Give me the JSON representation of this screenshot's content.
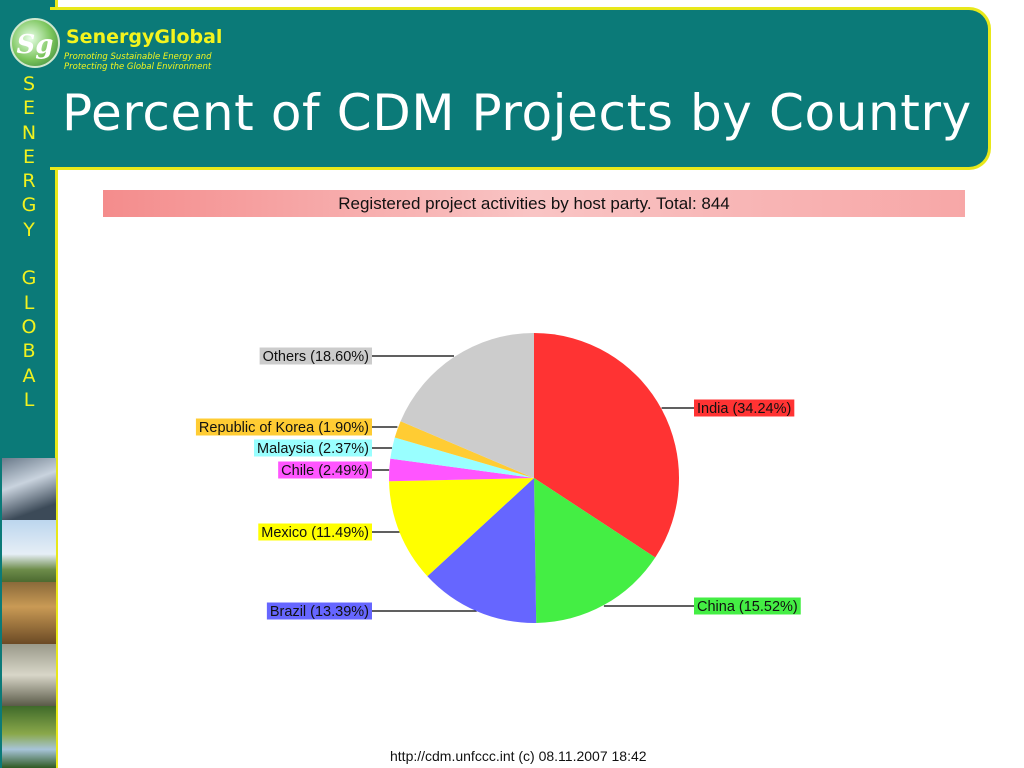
{
  "brand": {
    "name": "SenergyGlobal",
    "logo_text": "Sg",
    "tagline": "Promoting Sustainable Energy and Protecting the Global Environment",
    "vertical_text": "SENERGY GLOBAL"
  },
  "slide": {
    "title": "Percent of CDM Projects by Country",
    "source": "http://cdm.unfccc.int (c) 08.11.2007 18:42"
  },
  "colors": {
    "teal": "#0b7a78",
    "yellow_border": "#e8e81a"
  },
  "chart_data": {
    "type": "pie",
    "title": "Registered project activities by host party. Total: 844",
    "slices": [
      {
        "name": "India",
        "value": 34.24,
        "label": "India (34.24%)",
        "color": "#ff3333"
      },
      {
        "name": "China",
        "value": 15.52,
        "label": "China (15.52%)",
        "color": "#44ee44"
      },
      {
        "name": "Brazil",
        "value": 13.39,
        "label": "Brazil (13.39%)",
        "color": "#6666ff"
      },
      {
        "name": "Mexico",
        "value": 11.49,
        "label": "Mexico (11.49%)",
        "color": "#ffff00"
      },
      {
        "name": "Chile",
        "value": 2.49,
        "label": "Chile (2.49%)",
        "color": "#ff55ff"
      },
      {
        "name": "Malaysia",
        "value": 2.37,
        "label": "Malaysia (2.37%)",
        "color": "#99ffff"
      },
      {
        "name": "Republic of Korea",
        "value": 1.9,
        "label": "Republic of Korea (1.90%)",
        "color": "#ffcc33"
      },
      {
        "name": "Others",
        "value": 18.6,
        "label": "Others (18.60%)",
        "color": "#cccccc"
      }
    ]
  }
}
